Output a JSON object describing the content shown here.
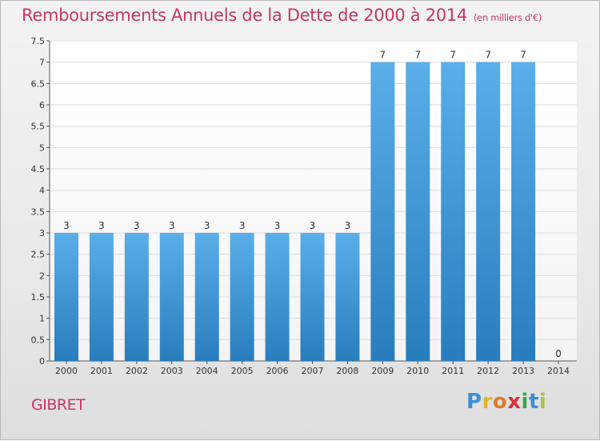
{
  "title": "Remboursements Annuels de la Dette de 2000 à 2014",
  "subtitle": "(en milliers d'€)",
  "commune": "GIBRET",
  "brand": {
    "letters": [
      "P",
      "r",
      "o",
      "x",
      "i",
      "t",
      "i"
    ],
    "colors": [
      "#3a8fd6",
      "#e8b22c",
      "#e07b2a",
      "#d9323c",
      "#3aa64a",
      "#3a8fd6",
      "#a8c83a"
    ]
  },
  "colors": {
    "bar_top": "#5aaeea",
    "bar_bottom": "#2a7dbd",
    "title": "#c8375d"
  },
  "chart_data": {
    "type": "bar",
    "title": "Remboursements Annuels de la Dette de 2000 à 2014",
    "categories": [
      "2000",
      "2001",
      "2002",
      "2003",
      "2004",
      "2005",
      "2006",
      "2007",
      "2008",
      "2009",
      "2010",
      "2011",
      "2012",
      "2013",
      "2014"
    ],
    "values": [
      3,
      3,
      3,
      3,
      3,
      3,
      3,
      3,
      3,
      7,
      7,
      7,
      7,
      7,
      0
    ],
    "data_labels": [
      "3",
      "3",
      "3",
      "3",
      "3",
      "3",
      "3",
      "3",
      "3",
      "7",
      "7",
      "7",
      "7",
      "7",
      "0"
    ],
    "y_ticks": [
      "0",
      "0.5",
      "1",
      "1.5",
      "2",
      "2.5",
      "3",
      "3.5",
      "4",
      "4.5",
      "5",
      "5.5",
      "6",
      "6.5",
      "7",
      "7.5"
    ],
    "ylim": [
      0,
      7.5
    ],
    "grid": true,
    "xlabel": "",
    "ylabel": ""
  }
}
